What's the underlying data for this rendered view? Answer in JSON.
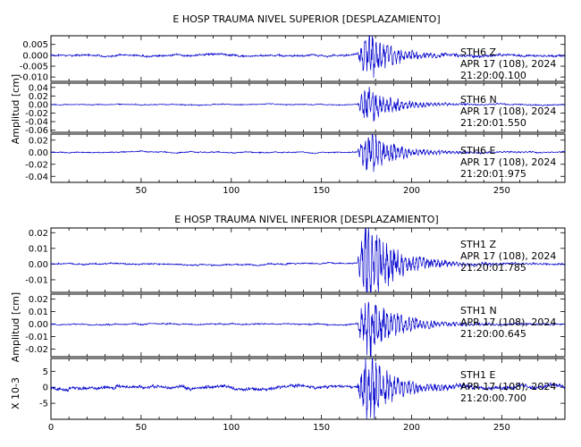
{
  "colors": {
    "trace": "#0000cc",
    "axis": "#000000",
    "background": "#ffffff"
  },
  "chart_data": [
    {
      "type": "line",
      "title": "E HOSP TRAUMA NIVEL SUPERIOR [DESPLAZAMIENTO]",
      "ylabel": "Amplitud [cm]",
      "xlim": [
        0,
        285
      ],
      "xticks": [
        50,
        100,
        150,
        200,
        250
      ],
      "event_onset_x": 170,
      "panels": [
        {
          "station": "STH6",
          "component": "Z",
          "date": "APR 17 (108), 2024",
          "time": "21:20:00.100",
          "ylim": [
            -0.012,
            0.009
          ],
          "yticks": [
            0.005,
            0.0,
            -0.005,
            -0.01
          ],
          "ytick_labels": [
            "0.005",
            "0.000",
            "-0.005",
            "-0.010"
          ],
          "noise": 0.0006,
          "peak": 0.0085
        },
        {
          "station": "STH6",
          "component": "N",
          "date": "APR 17 (108), 2024",
          "time": "21:20:01.550",
          "ylim": [
            -0.065,
            0.05
          ],
          "yticks": [
            0.04,
            0.02,
            0.0,
            -0.02,
            -0.04,
            -0.06
          ],
          "ytick_labels": [
            "0.04",
            "0.02",
            "0.00",
            "-0.02",
            "-0.04",
            "-0.06"
          ],
          "noise": 0.0015,
          "peak": 0.034
        },
        {
          "station": "STH6",
          "component": "E",
          "date": "APR 17 (108), 2024",
          "time": "21:20:01.975",
          "ylim": [
            -0.05,
            0.03
          ],
          "yticks": [
            0.02,
            0.0,
            -0.02,
            -0.04
          ],
          "ytick_labels": [
            "0.02",
            "0.00",
            "-0.02",
            "-0.04"
          ],
          "noise": 0.0012,
          "peak": 0.028
        }
      ]
    },
    {
      "type": "line",
      "title": "E HOSP TRAUMA NIVEL INFERIOR [DESPLAZAMIENTO]",
      "ylabel": "Amplitud [cm]",
      "ylabel_bottom": "X 10-3",
      "xlim": [
        0,
        285
      ],
      "xticks": [
        0,
        50,
        100,
        150,
        200,
        250
      ],
      "event_onset_x": 170,
      "panels": [
        {
          "station": "STH1",
          "component": "Z",
          "date": "APR 17 (108), 2024",
          "time": "21:20:01.785",
          "ylim": [
            -0.018,
            0.023
          ],
          "yticks": [
            0.02,
            0.01,
            0.0,
            -0.01
          ],
          "ytick_labels": [
            "0.02",
            "0.01",
            "0.00",
            "-0.01"
          ],
          "noise": 0.0006,
          "peak": 0.021
        },
        {
          "station": "STH1",
          "component": "N",
          "date": "APR 17 (108), 2024",
          "time": "21:20:00.645",
          "ylim": [
            -0.026,
            0.024
          ],
          "yticks": [
            0.02,
            0.01,
            0.0,
            -0.01,
            -0.02
          ],
          "ytick_labels": [
            "0.02",
            "0.01",
            "0.00",
            "-0.01",
            "-0.02"
          ],
          "noise": 0.0007,
          "peak": 0.021
        },
        {
          "station": "STH1",
          "component": "E",
          "date": "APR 17 (108), 2024",
          "time": "21:20:00.700",
          "ylim": [
            -10,
            9
          ],
          "yticks": [
            5,
            0,
            -5
          ],
          "ytick_labels": [
            "5",
            "0",
            "-5"
          ],
          "noise": 0.7,
          "peak": 8.5
        }
      ]
    }
  ]
}
